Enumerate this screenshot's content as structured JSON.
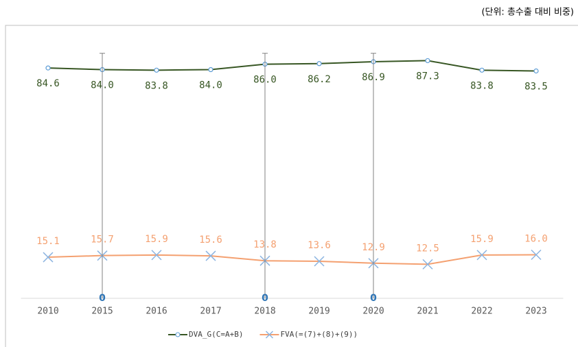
{
  "chart_data": {
    "type": "line",
    "unit_note": "(단위: 총수출 대비 비중)",
    "categories": [
      "2010",
      "2015",
      "2016",
      "2017",
      "2018",
      "2019",
      "2020",
      "2021",
      "2022",
      "2023"
    ],
    "ylim": [
      0,
      100
    ],
    "legend": "bottom",
    "series": [
      {
        "name": "DVA_G(C=A+B)",
        "color": "#375623",
        "marker": "circle",
        "marker_color": "#5b9bd5",
        "label_position": "below",
        "values": [
          84.6,
          84.0,
          83.8,
          84.0,
          86.0,
          86.2,
          86.9,
          87.3,
          83.8,
          83.5
        ],
        "value_labels": [
          "84.6",
          "84.0",
          "83.8",
          "84.0",
          "86.0",
          "86.2",
          "86.9",
          "87.3",
          "83.8",
          "83.5"
        ]
      },
      {
        "name": "FVA(=(7)+(8)+(9))",
        "color": "#f4a070",
        "marker": "x",
        "marker_color": "#8cb4e0",
        "label_position": "above",
        "values": [
          15.1,
          15.7,
          15.9,
          15.6,
          13.8,
          13.6,
          12.9,
          12.5,
          15.9,
          16.0
        ],
        "value_labels": [
          "15.1",
          "15.7",
          "15.9",
          "15.6",
          "13.8",
          "13.6",
          "12.9",
          "12.5",
          "15.9",
          "16.0"
        ]
      },
      {
        "color": "#2e75b6",
        "marker": "drop",
        "label_position": "above",
        "values": [
          null,
          0,
          null,
          null,
          0,
          null,
          0,
          null,
          null,
          null
        ]
      }
    ]
  }
}
